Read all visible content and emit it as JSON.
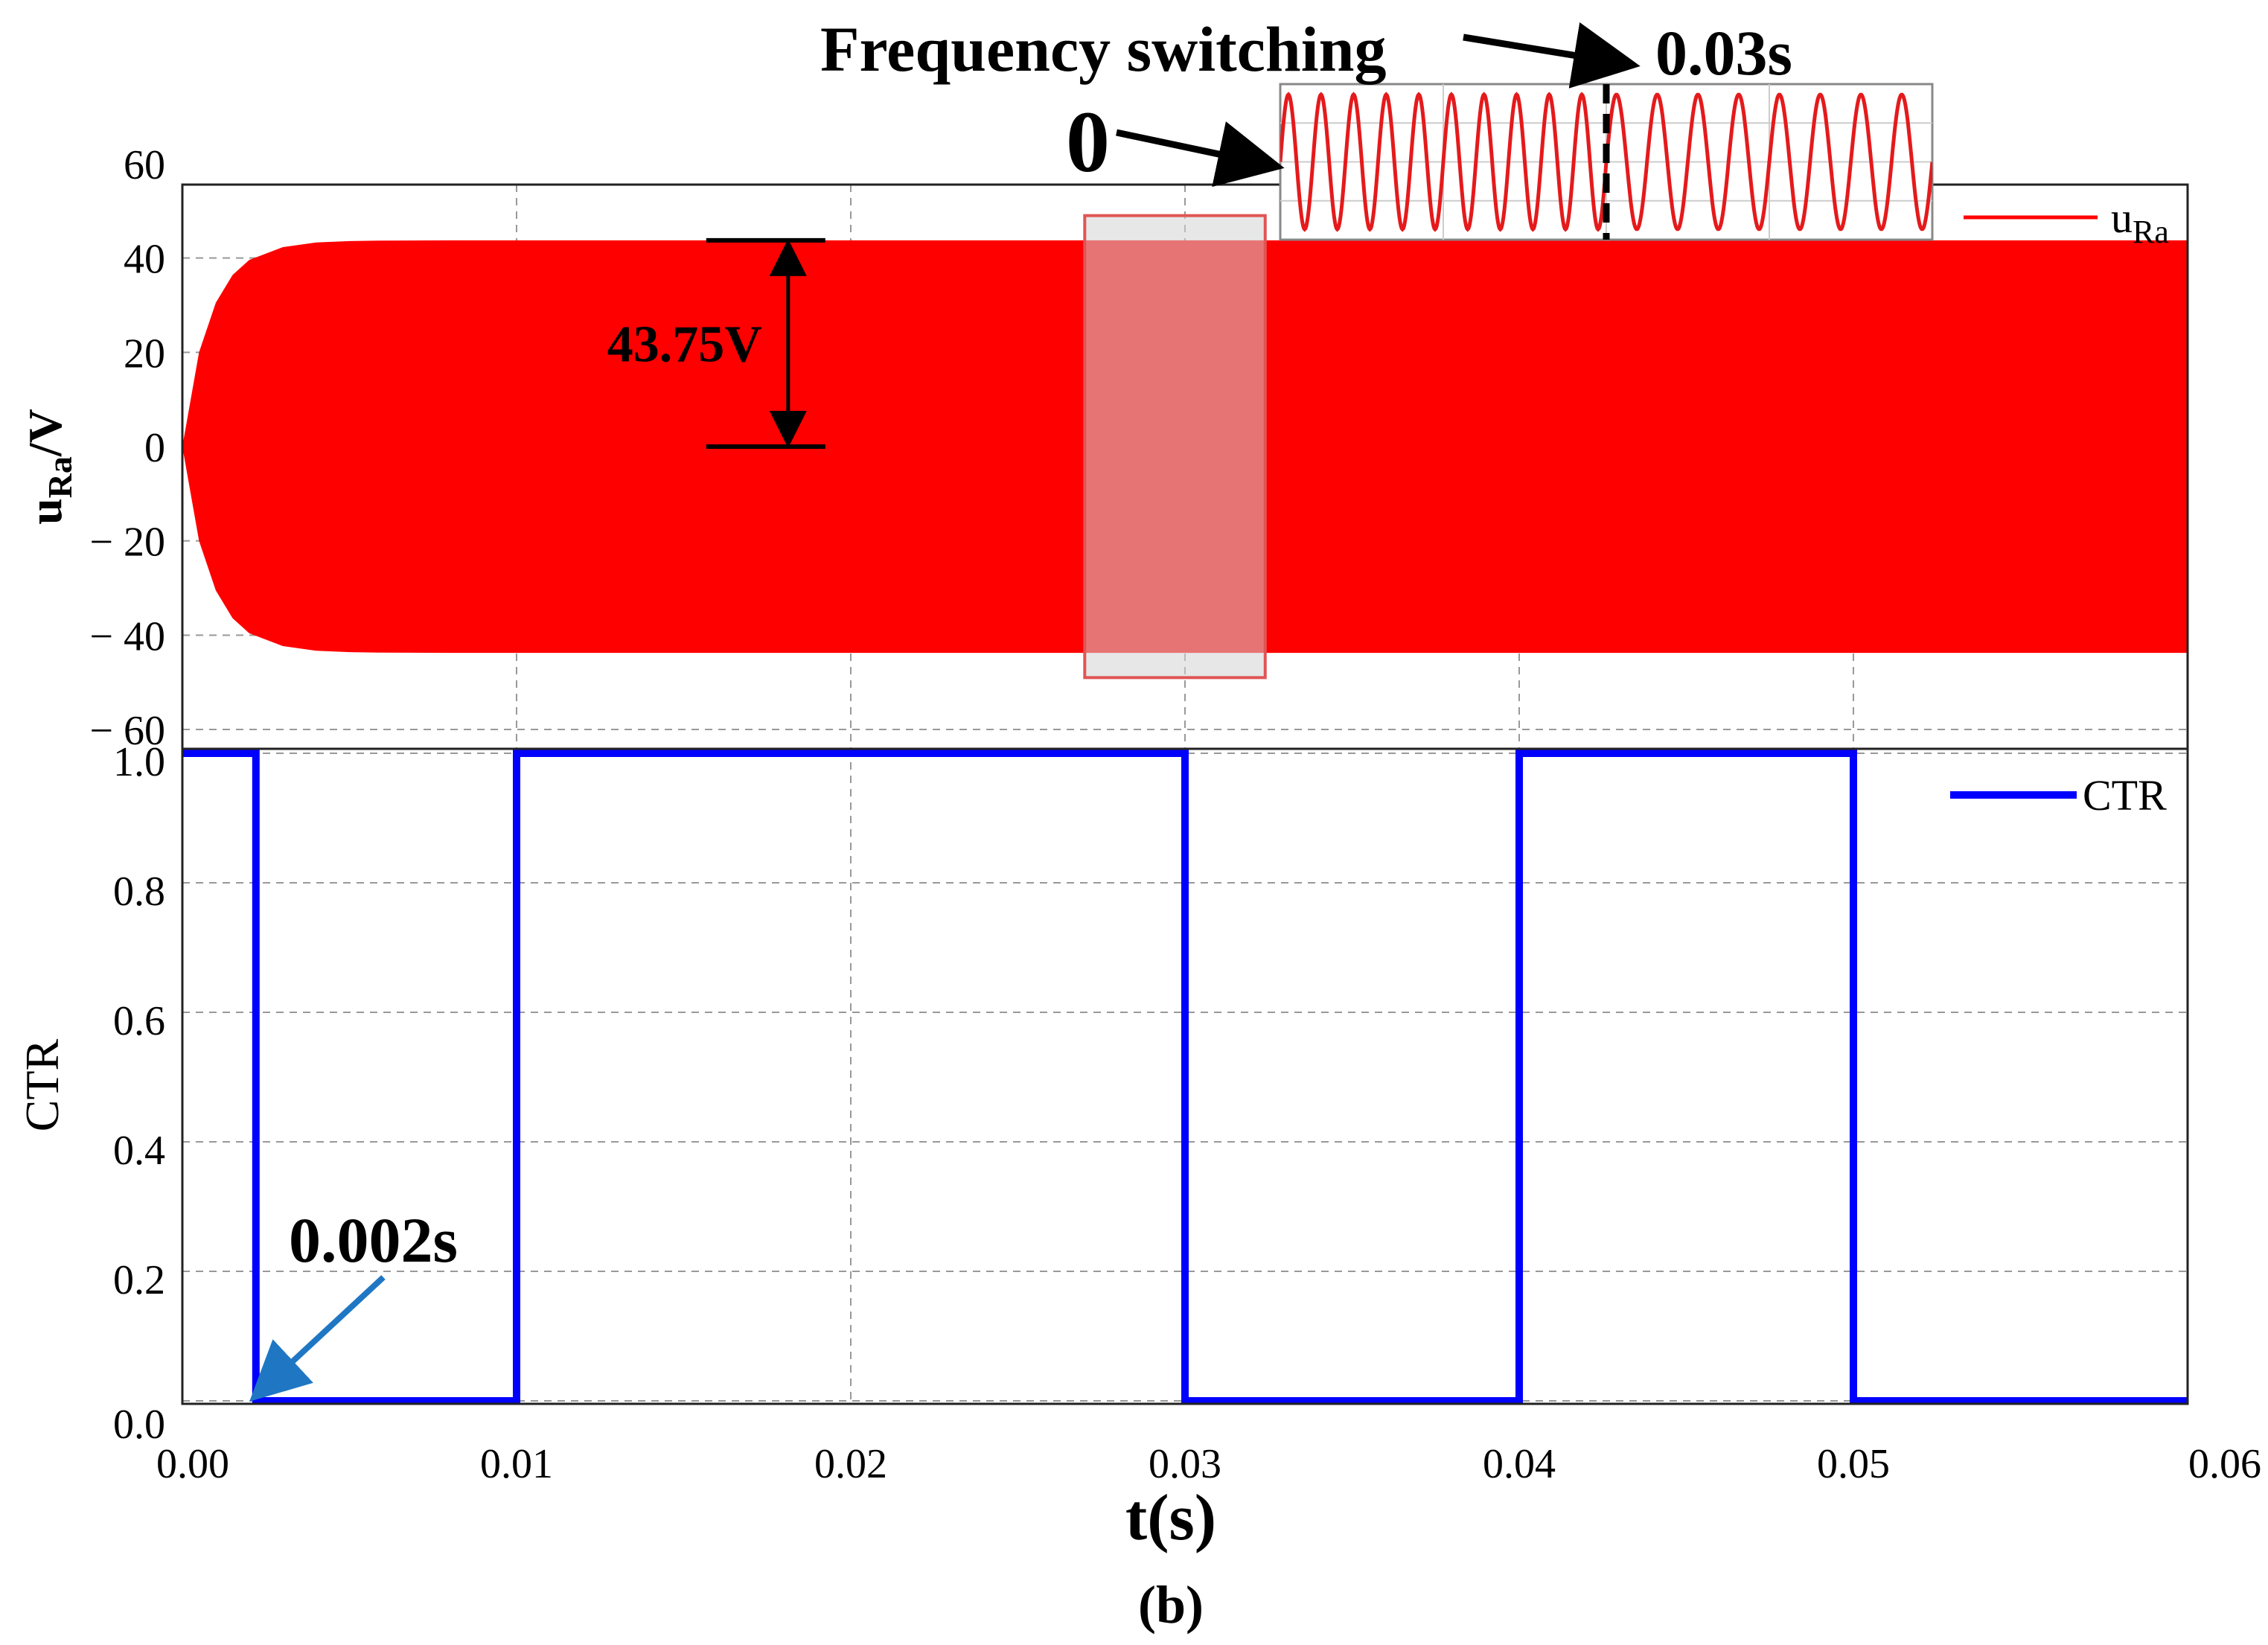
{
  "figure_label": "(b)",
  "colors": {
    "voltage": "#ff0000",
    "ctr": "#0000ff",
    "arrow_blue": "#1f77c4",
    "highlight_fill": "#d3d3d3",
    "highlight_edge": "#e05555",
    "grid": "#999999"
  },
  "chart_data": [
    {
      "type": "line",
      "name": "upper",
      "title": "",
      "xlabel": "",
      "ylabel_main": "u",
      "ylabel_sub": "Ra",
      "ylabel_tail": "/V",
      "legend": {
        "main": "u",
        "sub": "Ra",
        "position": "top-right"
      },
      "xlim": [
        0,
        0.06
      ],
      "ylim": [
        -60,
        60
      ],
      "yticks": [
        60,
        40,
        20,
        0,
        -20,
        -40,
        -60
      ],
      "ytick_labels": [
        "60",
        "40",
        "20",
        "0",
        "− 20",
        "− 40",
        "− 60"
      ],
      "series": [
        {
          "name": "uRa envelope (upper)",
          "x": [
            0,
            0.0005,
            0.001,
            0.0015,
            0.002,
            0.003,
            0.004,
            0.005,
            0.006,
            0.008,
            0.06
          ],
          "y": [
            0,
            20,
            30.5,
            36.4,
            39.6,
            42.3,
            43.3,
            43.6,
            43.7,
            43.75,
            43.75
          ]
        },
        {
          "name": "uRa envelope (lower)",
          "x": [
            0,
            0.0005,
            0.001,
            0.0015,
            0.002,
            0.003,
            0.004,
            0.005,
            0.006,
            0.008,
            0.06
          ],
          "y": [
            0,
            -20,
            -30.5,
            -36.4,
            -39.6,
            -42.3,
            -43.3,
            -43.6,
            -43.7,
            -43.75,
            -43.75
          ]
        }
      ],
      "amplitude_annotation": {
        "label": "43.75V",
        "from": 0,
        "to": 43.75,
        "x": 0.0169
      },
      "highlight_region": {
        "x": [
          0.027,
          0.0324
        ],
        "y": [
          -49,
          49
        ]
      },
      "inset": {
        "title": "Frequency switching",
        "start_label": "0",
        "switch_label": "0.03s",
        "switch_x": 0.03,
        "cycles_before": 10,
        "cycles_after": 8,
        "xlim": [
          0.0275,
          0.0325
        ]
      }
    },
    {
      "type": "line",
      "name": "lower",
      "title": "",
      "xlabel": "t(s)",
      "ylabel": "CTR",
      "legend": {
        "label": "CTR",
        "position": "top-right"
      },
      "xlim": [
        0,
        0.06
      ],
      "ylim": [
        0,
        1.0
      ],
      "xticks": [
        0,
        0.01,
        0.02,
        0.03,
        0.04,
        0.05,
        0.06
      ],
      "xtick_labels": [
        "0.00",
        "0.01",
        "0.02",
        "0.03",
        "0.04",
        "0.05",
        "0.06"
      ],
      "yticks": [
        1.0,
        0.8,
        0.6,
        0.4,
        0.2,
        0.0
      ],
      "ytick_labels": [
        "1.0",
        "0.8",
        "0.6",
        "0.4",
        "0.2",
        "0.0"
      ],
      "series": [
        {
          "name": "CTR",
          "x": [
            0,
            0.0022,
            0.0022,
            0.01,
            0.01,
            0.03,
            0.03,
            0.04,
            0.04,
            0.05,
            0.05,
            0.06
          ],
          "y": [
            1,
            1,
            0,
            0,
            1,
            1,
            0,
            0,
            1,
            1,
            0,
            0
          ]
        }
      ],
      "annotation": {
        "label": "0.002s",
        "x": 0.002,
        "y": 0
      }
    }
  ]
}
